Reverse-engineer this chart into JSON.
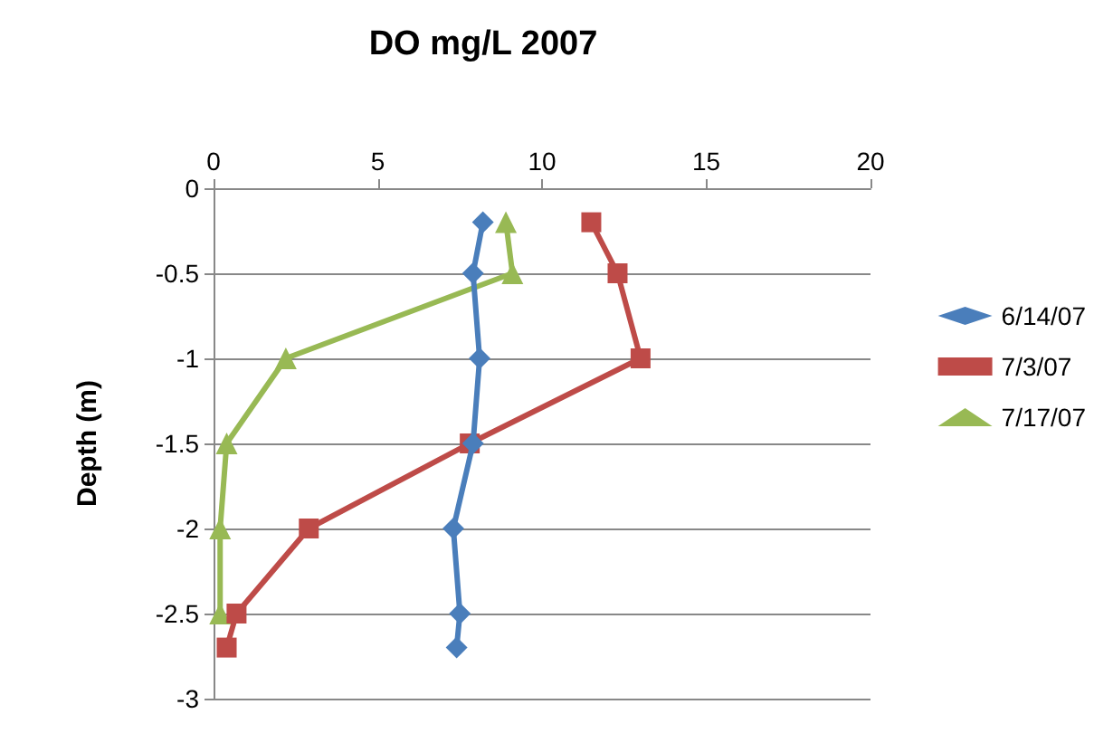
{
  "chart_data": {
    "type": "line",
    "title": "DO mg/L 2007",
    "ylabel": "Depth (m)",
    "xlim": [
      0,
      20
    ],
    "xticks": [
      0,
      5,
      10,
      15,
      20
    ],
    "ylim": [
      -3,
      0
    ],
    "yticks": [
      -3,
      -2.5,
      -2,
      -1.5,
      -1,
      -0.5,
      0
    ],
    "grid": "y",
    "legend": "right",
    "line_style": "solid",
    "series": [
      {
        "name": "6/14/07",
        "color": "#4a7ebb",
        "marker": "diamond",
        "x": [
          8.2,
          7.9,
          8.1,
          7.9,
          7.3,
          7.5,
          7.4
        ],
        "values": [
          -0.2,
          -0.5,
          -1,
          -1.5,
          -2,
          -2.5,
          -2.7
        ]
      },
      {
        "name": "7/3/07",
        "color": "#be4b48",
        "marker": "square",
        "x": [
          11.5,
          12.3,
          13.0,
          7.8,
          2.9,
          0.7,
          0.4
        ],
        "values": [
          -0.2,
          -0.5,
          -1,
          -1.5,
          -2,
          -2.5,
          -2.7
        ]
      },
      {
        "name": "7/17/07",
        "color": "#98b954",
        "marker": "triangle",
        "x": [
          8.9,
          9.1,
          2.2,
          0.4,
          0.2,
          0.2
        ],
        "values": [
          -0.2,
          -0.5,
          -1,
          -1.5,
          -2,
          -2.5
        ]
      }
    ]
  }
}
